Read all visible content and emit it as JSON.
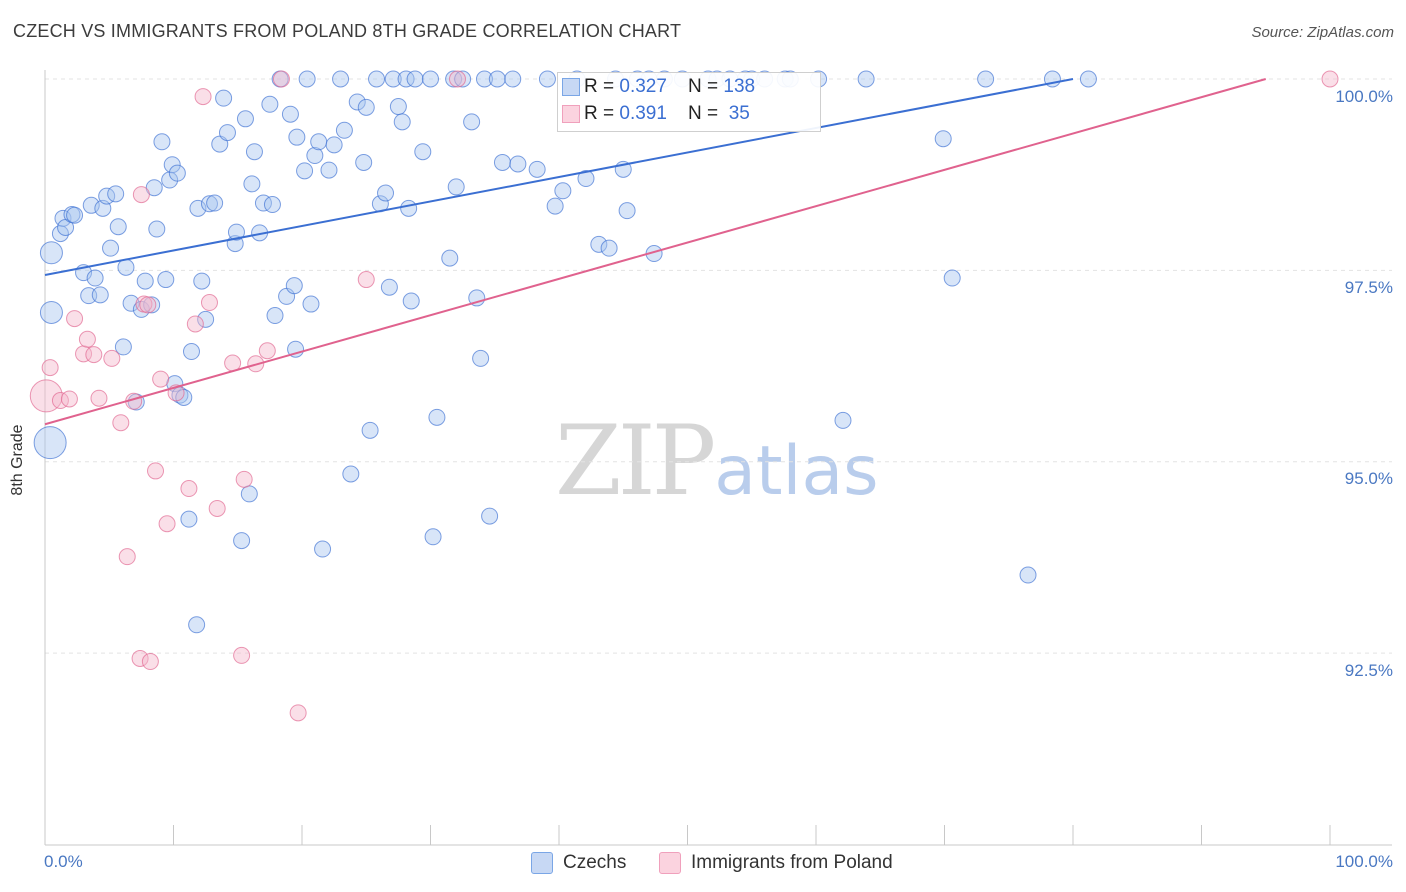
{
  "title": "CZECH VS IMMIGRANTS FROM POLAND 8TH GRADE CORRELATION CHART",
  "source": "Source: ZipAtlas.com",
  "watermark": {
    "zip": "ZIP",
    "atlas": "atlas"
  },
  "legend": {
    "rows": [
      {
        "r_label": "R = ",
        "r_value": "0.327",
        "n_label": "N = ",
        "n_value": "138",
        "color": "#7aa6e6"
      },
      {
        "r_label": "R = ",
        "r_value": "0.391",
        "n_label": "N = ",
        "n_value": " 35",
        "color": "#f0a0bc"
      }
    ]
  },
  "bottom_legend": [
    {
      "label": "Czechs",
      "color": "#7aa6e6"
    },
    {
      "label": "Immigrants from Poland",
      "color": "#f0a0bc"
    }
  ],
  "chart_data": {
    "type": "scatter",
    "title": "CZECH VS IMMIGRANTS FROM POLAND 8TH GRADE CORRELATION CHART",
    "xlabel": "",
    "ylabel": "8th Grade",
    "xlim": [
      0,
      100
    ],
    "ylim": [
      90.6,
      100.4
    ],
    "x_tick_labels": [
      "0.0%",
      "100.0%"
    ],
    "y_ticks": [
      92.5,
      95.0,
      97.5,
      100.0
    ],
    "y_tick_labels": [
      "92.5%",
      "95.0%",
      "97.5%",
      "100.0%"
    ],
    "grid": "horizontal dashed",
    "series": [
      {
        "name": "Czechs",
        "color": "#3b6fd2",
        "fill": "#a9c5f0",
        "trend": [
          [
            0,
            97.44
          ],
          [
            80,
            100.0
          ]
        ],
        "points": [
          [
            0.4,
            95.25
          ],
          [
            0.5,
            96.95
          ],
          [
            0.5,
            97.73
          ],
          [
            1.2,
            97.98
          ],
          [
            1.4,
            98.18
          ],
          [
            1.6,
            98.06
          ],
          [
            2.1,
            98.23
          ],
          [
            2.3,
            98.22
          ],
          [
            3.0,
            97.47
          ],
          [
            3.4,
            97.17
          ],
          [
            3.6,
            98.35
          ],
          [
            3.9,
            97.4
          ],
          [
            4.3,
            97.18
          ],
          [
            4.5,
            98.31
          ],
          [
            4.8,
            98.47
          ],
          [
            5.1,
            97.79
          ],
          [
            5.5,
            98.5
          ],
          [
            5.7,
            98.07
          ],
          [
            6.1,
            96.5
          ],
          [
            6.3,
            97.54
          ],
          [
            6.7,
            97.07
          ],
          [
            7.1,
            95.78
          ],
          [
            7.5,
            96.99
          ],
          [
            7.8,
            97.36
          ],
          [
            8.3,
            97.05
          ],
          [
            8.5,
            98.58
          ],
          [
            8.7,
            98.04
          ],
          [
            9.1,
            99.18
          ],
          [
            9.4,
            97.38
          ],
          [
            9.7,
            98.68
          ],
          [
            9.9,
            98.88
          ],
          [
            10.1,
            96.02
          ],
          [
            10.3,
            98.77
          ],
          [
            10.5,
            95.87
          ],
          [
            10.8,
            95.84
          ],
          [
            11.2,
            94.25
          ],
          [
            11.4,
            96.44
          ],
          [
            11.8,
            92.87
          ],
          [
            11.9,
            98.31
          ],
          [
            12.2,
            97.36
          ],
          [
            12.5,
            96.86
          ],
          [
            12.8,
            98.37
          ],
          [
            13.2,
            98.38
          ],
          [
            13.6,
            99.15
          ],
          [
            13.9,
            99.75
          ],
          [
            14.2,
            99.3
          ],
          [
            14.8,
            97.85
          ],
          [
            14.9,
            98.0
          ],
          [
            15.3,
            93.97
          ],
          [
            15.6,
            99.48
          ],
          [
            15.9,
            94.58
          ],
          [
            16.1,
            98.63
          ],
          [
            16.3,
            99.05
          ],
          [
            16.7,
            97.99
          ],
          [
            17.0,
            98.38
          ],
          [
            17.5,
            99.67
          ],
          [
            17.7,
            98.36
          ],
          [
            17.9,
            96.91
          ],
          [
            18.3,
            100.0
          ],
          [
            18.8,
            97.16
          ],
          [
            19.1,
            99.54
          ],
          [
            19.4,
            97.3
          ],
          [
            19.5,
            96.47
          ],
          [
            19.6,
            99.24
          ],
          [
            20.2,
            98.8
          ],
          [
            20.4,
            100.0
          ],
          [
            20.7,
            97.06
          ],
          [
            21.0,
            99.0
          ],
          [
            21.3,
            99.18
          ],
          [
            21.6,
            93.86
          ],
          [
            22.1,
            98.81
          ],
          [
            22.5,
            99.14
          ],
          [
            23.0,
            100.0
          ],
          [
            23.3,
            99.33
          ],
          [
            23.8,
            94.84
          ],
          [
            24.3,
            99.7
          ],
          [
            24.8,
            98.91
          ],
          [
            25.0,
            99.63
          ],
          [
            25.3,
            95.41
          ],
          [
            25.8,
            100.0
          ],
          [
            26.1,
            98.37
          ],
          [
            26.5,
            98.51
          ],
          [
            26.8,
            97.28
          ],
          [
            27.1,
            100.0
          ],
          [
            27.5,
            99.64
          ],
          [
            27.8,
            99.44
          ],
          [
            28.1,
            100.0
          ],
          [
            28.3,
            98.31
          ],
          [
            28.5,
            97.1
          ],
          [
            28.8,
            100.0
          ],
          [
            29.4,
            99.05
          ],
          [
            30.0,
            100.0
          ],
          [
            30.2,
            94.02
          ],
          [
            30.5,
            95.58
          ],
          [
            31.5,
            97.66
          ],
          [
            31.8,
            100.0
          ],
          [
            32.0,
            98.59
          ],
          [
            32.5,
            100.0
          ],
          [
            33.2,
            99.44
          ],
          [
            33.6,
            97.14
          ],
          [
            33.9,
            96.35
          ],
          [
            34.2,
            100.0
          ],
          [
            34.6,
            94.29
          ],
          [
            35.2,
            100.0
          ],
          [
            35.6,
            98.91
          ],
          [
            36.4,
            100.0
          ],
          [
            36.8,
            98.89
          ],
          [
            38.3,
            98.82
          ],
          [
            39.1,
            100.0
          ],
          [
            39.7,
            98.34
          ],
          [
            40.3,
            98.54
          ],
          [
            41.4,
            100.0
          ],
          [
            42.1,
            98.7
          ],
          [
            43.1,
            97.84
          ],
          [
            43.9,
            97.79
          ],
          [
            44.4,
            100.0
          ],
          [
            45.0,
            98.82
          ],
          [
            45.3,
            98.28
          ],
          [
            46.1,
            100.0
          ],
          [
            47.0,
            100.0
          ],
          [
            47.4,
            97.72
          ],
          [
            48.2,
            100.0
          ],
          [
            49.6,
            100.0
          ],
          [
            51.6,
            100.0
          ],
          [
            52.3,
            100.0
          ],
          [
            53.3,
            100.0
          ],
          [
            54.5,
            100.0
          ],
          [
            55.0,
            100.0
          ],
          [
            56.0,
            100.0
          ],
          [
            57.6,
            100.0
          ],
          [
            58.0,
            100.0
          ],
          [
            60.2,
            100.0
          ],
          [
            62.1,
            95.54
          ],
          [
            63.9,
            100.0
          ],
          [
            69.9,
            99.22
          ],
          [
            70.6,
            97.4
          ],
          [
            73.2,
            100.0
          ],
          [
            78.4,
            100.0
          ],
          [
            76.5,
            93.52
          ],
          [
            81.2,
            100.0
          ]
        ]
      },
      {
        "name": "Immigrants from Poland",
        "color": "#e0628e",
        "fill": "#f4b7cb",
        "trend": [
          [
            0,
            95.49
          ],
          [
            95,
            100.0
          ]
        ],
        "points": [
          [
            0.1,
            95.86
          ],
          [
            0.4,
            96.23
          ],
          [
            1.2,
            95.8
          ],
          [
            1.9,
            95.82
          ],
          [
            2.3,
            96.87
          ],
          [
            3.0,
            96.41
          ],
          [
            3.3,
            96.6
          ],
          [
            3.8,
            96.4
          ],
          [
            4.2,
            95.83
          ],
          [
            5.2,
            96.35
          ],
          [
            5.9,
            95.51
          ],
          [
            6.4,
            93.76
          ],
          [
            6.9,
            95.79
          ],
          [
            7.4,
            92.43
          ],
          [
            7.5,
            98.49
          ],
          [
            7.7,
            97.06
          ],
          [
            8.0,
            97.05
          ],
          [
            8.2,
            92.39
          ],
          [
            8.6,
            94.88
          ],
          [
            9.0,
            96.08
          ],
          [
            9.5,
            94.19
          ],
          [
            10.2,
            95.9
          ],
          [
            11.2,
            94.65
          ],
          [
            11.7,
            96.8
          ],
          [
            12.3,
            99.77
          ],
          [
            12.8,
            97.08
          ],
          [
            13.4,
            94.39
          ],
          [
            14.6,
            96.29
          ],
          [
            15.3,
            92.47
          ],
          [
            15.5,
            94.77
          ],
          [
            16.4,
            96.28
          ],
          [
            17.3,
            96.45
          ],
          [
            18.4,
            100.0
          ],
          [
            19.7,
            91.72
          ],
          [
            25.0,
            97.38
          ],
          [
            32.1,
            100.0
          ],
          [
            100.0,
            100.0
          ]
        ]
      }
    ]
  }
}
